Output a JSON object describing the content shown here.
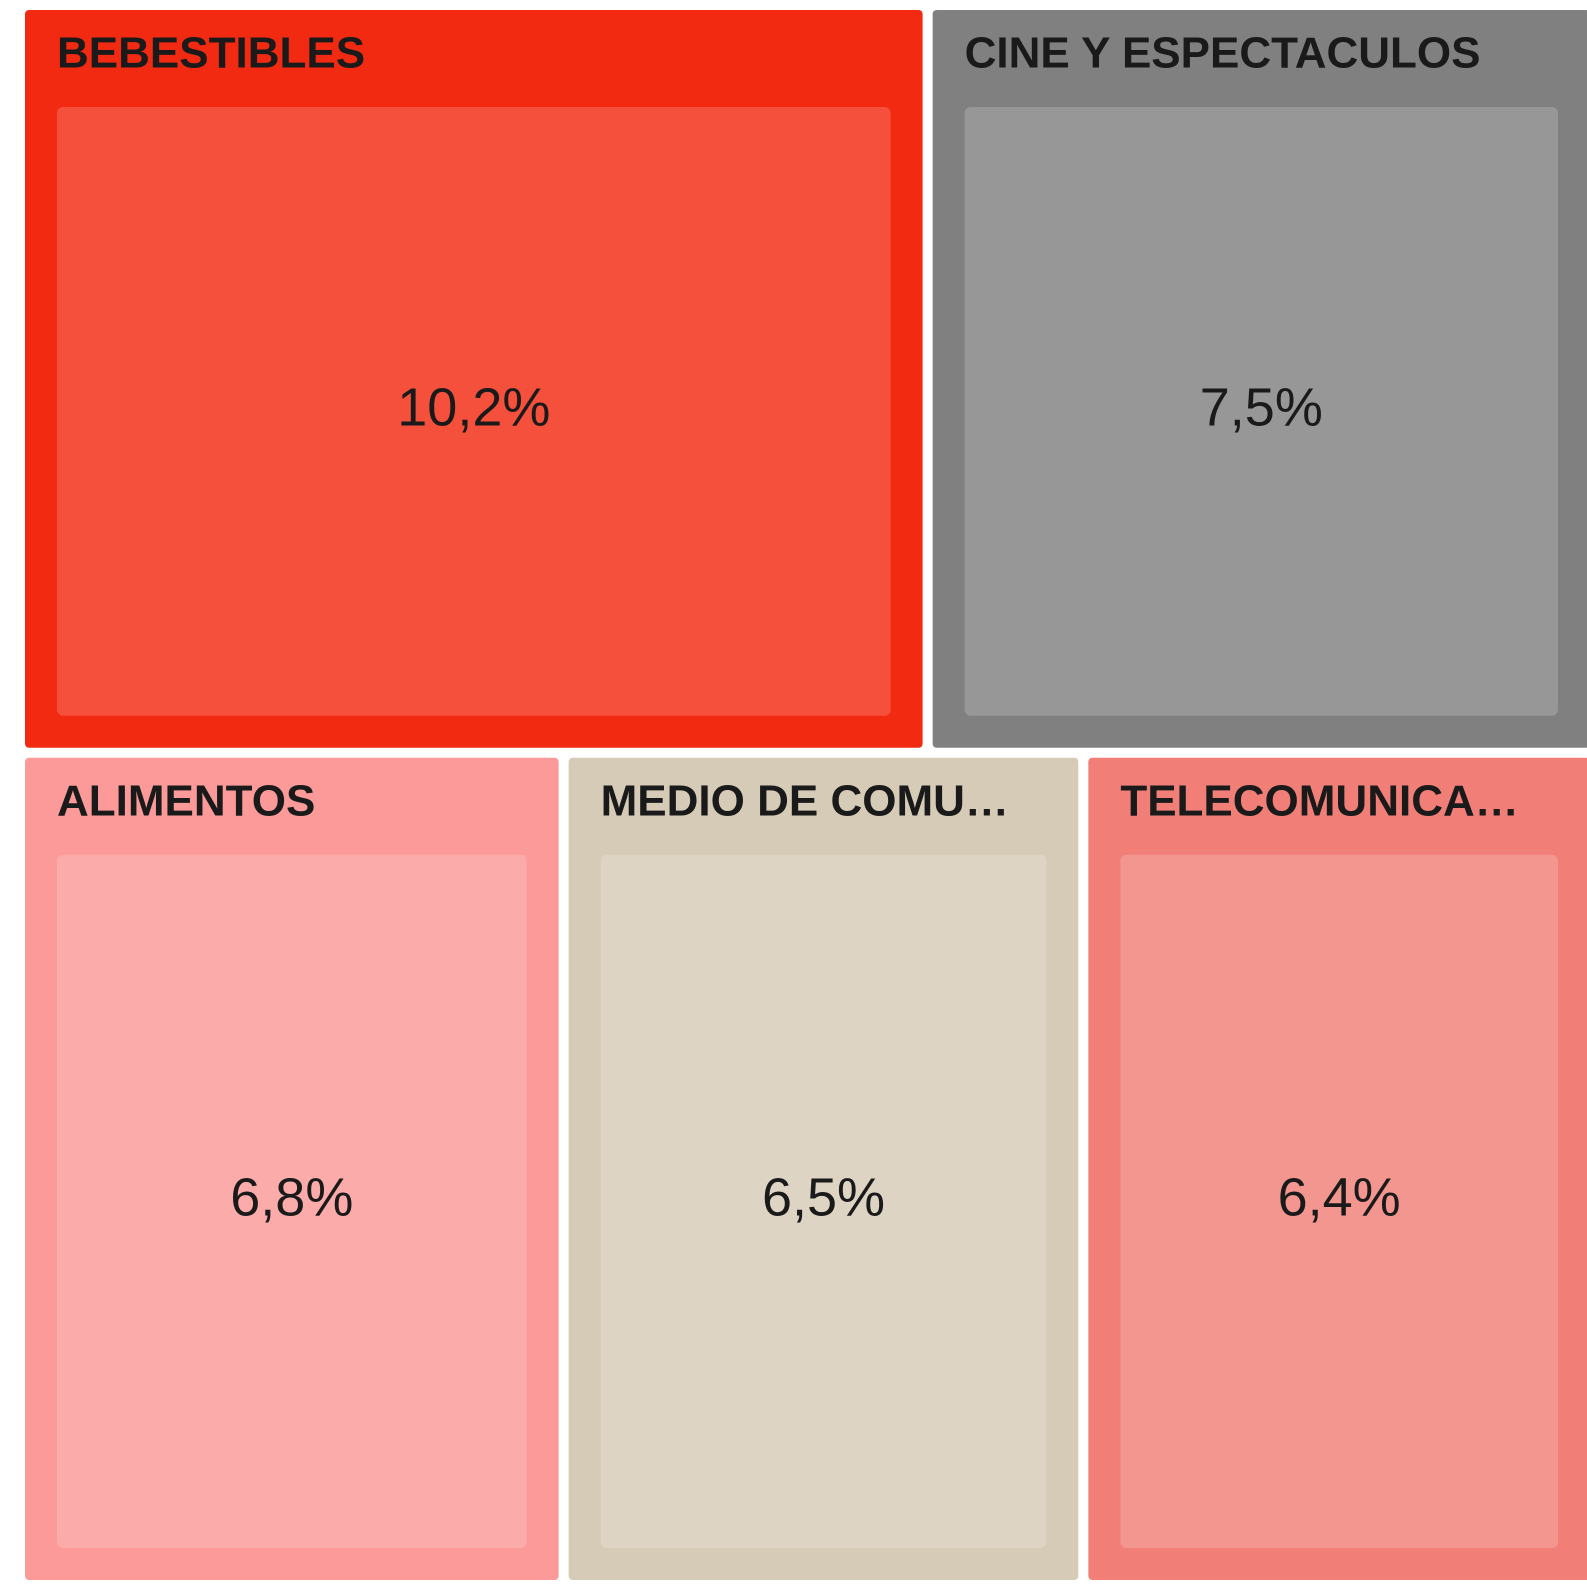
{
  "chart_data": {
    "type": "treemap",
    "categories": [
      "BEBESTIBLES",
      "CINE Y ESPECTACULOS",
      "ALIMENTOS",
      "MEDIO DE COMU…",
      "TELECOMUNICA…"
    ],
    "values": [
      10.2,
      7.5,
      6.8,
      6.5,
      6.4
    ],
    "value_labels": [
      "10,2%",
      "7,5%",
      "6,8%",
      "6,5%",
      "6,4%"
    ],
    "colors": [
      "#f22a12",
      "#808080",
      "#fb9a98",
      "#d6cbb6",
      "#f17f78"
    ]
  }
}
